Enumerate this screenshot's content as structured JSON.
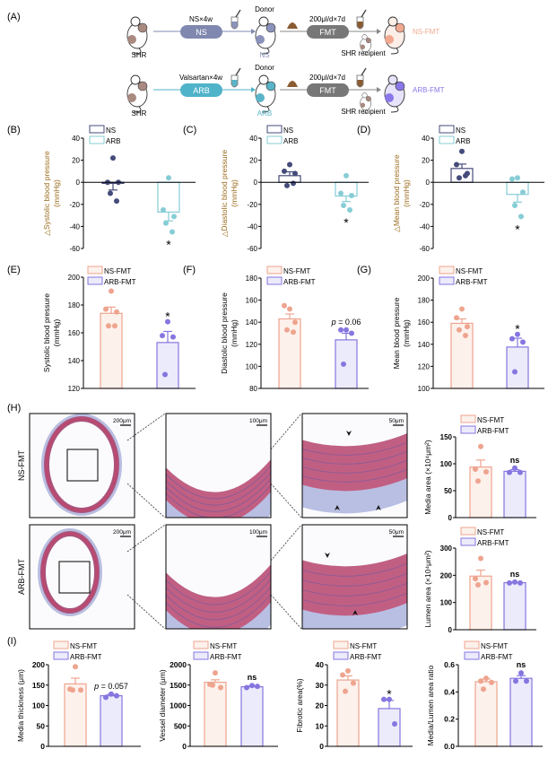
{
  "panel_labels": [
    "(A)",
    "(B)",
    "(C)",
    "(D)",
    "(E)",
    "(F)",
    "(G)",
    "(H)",
    "(I)"
  ],
  "schematic": {
    "rows": [
      {
        "start": "SHR",
        "treatment_label": "NS×4w",
        "treatment_pill": "NS",
        "donor_label": "Donor",
        "donor_group": "NS",
        "dose_label": "200μl/d×7d",
        "fmt_pill": "FMT",
        "recipient_label": "SHR recipient",
        "result_label": "NS-FMT",
        "pill_color": "#8088b0",
        "group_color": "#8a92bc",
        "result_color": "#f0a890"
      },
      {
        "start": "SHR",
        "treatment_label": "Valsartan×4w",
        "treatment_pill": "ARB",
        "donor_label": "Donor",
        "donor_group": "ARB",
        "dose_label": "200μl/d×7d",
        "fmt_pill": "FMT",
        "recipient_label": "SHR recipient",
        "result_label": "ARB-FMT",
        "pill_color": "#4fb3c9",
        "group_color": "#5ab4c8",
        "result_color": "#8a78e8"
      }
    ]
  },
  "histology": {
    "row_labels": [
      "NS-FMT",
      "ARB-FMT"
    ],
    "scale_bars": [
      "200μm",
      "100μm",
      "50μm"
    ]
  },
  "colors": {
    "NS": {
      "stroke": "#454b7a",
      "fill": "#ffffff",
      "point": "#454b7a"
    },
    "ARB": {
      "stroke": "#86cdd6",
      "fill": "#ffffff",
      "point": "#86cdd6"
    },
    "NS-FMT": {
      "stroke": "#eea48e",
      "fill": "#fdf1ec",
      "point": "#eea48e"
    },
    "ARB-FMT": {
      "stroke": "#8576e0",
      "fill": "#ecebfb",
      "point": "#8576e0"
    },
    "ylabel_delta": "#9a6a1a"
  },
  "chart_data": [
    {
      "panel": "(B)",
      "type": "bar",
      "ylabel": [
        "△Systolic blood pressure",
        "(mmHg)"
      ],
      "ylim": [
        -60,
        40
      ],
      "yticks": [
        -60,
        -40,
        -20,
        0,
        20,
        40
      ],
      "legend": [
        "NS",
        "ARB"
      ],
      "groups": [
        {
          "name": "NS",
          "mean": -1,
          "sem": 6,
          "points": [
            22,
            0,
            0,
            -10,
            -17
          ]
        },
        {
          "name": "ARB",
          "mean": -27,
          "sem": 8,
          "points": [
            4,
            -25,
            -31,
            -37,
            -45
          ]
        }
      ],
      "annotation": "*"
    },
    {
      "panel": "(C)",
      "type": "bar",
      "ylabel": [
        "△Diastolic blood pressure",
        "(mmHg)"
      ],
      "ylim": [
        -60,
        40
      ],
      "yticks": [
        -60,
        -40,
        -20,
        0,
        20,
        40
      ],
      "legend": [
        "NS",
        "ARB"
      ],
      "groups": [
        {
          "name": "NS",
          "mean": 6,
          "sem": 3.5,
          "points": [
            16,
            10,
            8,
            -3,
            -1
          ]
        },
        {
          "name": "ARB",
          "mean": -12.5,
          "sem": 5,
          "points": [
            6,
            -10,
            -12,
            -21,
            -25
          ]
        }
      ],
      "annotation": "*"
    },
    {
      "panel": "(D)",
      "type": "bar",
      "ylabel": [
        "△Mean blood pressure",
        "(mmHg)"
      ],
      "ylim": [
        -60,
        40
      ],
      "yticks": [
        -60,
        -40,
        -20,
        0,
        20,
        40
      ],
      "legend": [
        "NS",
        "ARB"
      ],
      "groups": [
        {
          "name": "NS",
          "mean": 12.5,
          "sem": 4,
          "points": [
            28,
            16,
            8,
            4,
            6
          ]
        },
        {
          "name": "ARB",
          "mean": -11,
          "sem": 7,
          "points": [
            4,
            3,
            -9,
            -21,
            -31
          ]
        }
      ],
      "annotation": "*"
    },
    {
      "panel": "(E)",
      "type": "bar",
      "ylabel": [
        "Systolic blood pressure",
        "(mmHg)"
      ],
      "ylim": [
        120,
        200
      ],
      "yticks": [
        120,
        140,
        160,
        180,
        200
      ],
      "legend": [
        "NS-FMT",
        "ARB-FMT"
      ],
      "groups": [
        {
          "name": "NS-FMT",
          "mean": 174,
          "sem": 4.5,
          "points": [
            190,
            177,
            175,
            165,
            165
          ]
        },
        {
          "name": "ARB-FMT",
          "mean": 153,
          "sem": 8,
          "points": [
            168,
            158,
            157,
            130
          ]
        }
      ],
      "annotation": "*"
    },
    {
      "panel": "(F)",
      "type": "bar",
      "ylabel": [
        "Diastolic blood pressure",
        "(mmHg)"
      ],
      "ylim": [
        80,
        180
      ],
      "yticks": [
        80,
        100,
        120,
        140,
        160,
        180
      ],
      "legend": [
        "NS-FMT",
        "ARB-FMT"
      ],
      "groups": [
        {
          "name": "NS-FMT",
          "mean": 143,
          "sem": 4.5,
          "points": [
            152,
            155,
            140,
            133,
            131
          ]
        },
        {
          "name": "ARB-FMT",
          "mean": 124,
          "sem": 6,
          "points": [
            133,
            133,
            130,
            102
          ]
        }
      ],
      "annotation": "p = 0.06"
    },
    {
      "panel": "(G)",
      "type": "bar",
      "ylabel": [
        "Mean blood pressure",
        "(mmHg)"
      ],
      "ylim": [
        100,
        200
      ],
      "yticks": [
        100,
        120,
        140,
        160,
        180,
        200
      ],
      "legend": [
        "NS-FMT",
        "ARB-FMT"
      ],
      "groups": [
        {
          "name": "NS-FMT",
          "mean": 159,
          "sem": 4,
          "points": [
            172,
            164,
            156,
            153,
            148
          ]
        },
        {
          "name": "ARB-FMT",
          "mean": 137.5,
          "sem": 8,
          "points": [
            149,
            145,
            142,
            115
          ]
        }
      ],
      "annotation": "*"
    },
    {
      "panel": "(H)",
      "type": "bar",
      "ylabel": [
        "Media area (×10⁴μm²)"
      ],
      "ylim": [
        0,
        150
      ],
      "yticks": [
        0,
        50,
        100,
        150
      ],
      "legend": [
        "NS-FMT",
        "ARB-FMT"
      ],
      "groups": [
        {
          "name": "NS-FMT",
          "mean": 94,
          "sem": 13,
          "points": [
            132,
            90,
            85,
            68
          ]
        },
        {
          "name": "ARB-FMT",
          "mean": 86,
          "sem": 3,
          "points": [
            92,
            84,
            84
          ]
        }
      ],
      "annotation": "ns"
    },
    {
      "panel": "(H)",
      "type": "bar",
      "ylabel": [
        "Lumen area (×10⁴μm²)"
      ],
      "ylim": [
        0,
        300
      ],
      "yticks": [
        0,
        100,
        200,
        300
      ],
      "legend": [
        "NS-FMT",
        "ARB-FMT"
      ],
      "groups": [
        {
          "name": "NS-FMT",
          "mean": 197,
          "sem": 22,
          "points": [
            262,
            188,
            173,
            165
          ]
        },
        {
          "name": "ARB-FMT",
          "mean": 173,
          "sem": 1.5,
          "points": [
            175,
            172,
            172
          ]
        }
      ],
      "annotation": "ns"
    },
    {
      "panel": "(I)",
      "type": "bar",
      "ylabel": [
        "Media thickness (μm)"
      ],
      "ylim": [
        0,
        200
      ],
      "yticks": [
        0,
        50,
        100,
        150,
        200
      ],
      "legend": [
        "NS-FMT",
        "ARB-FMT"
      ],
      "groups": [
        {
          "name": "NS-FMT",
          "mean": 153,
          "sem": 14,
          "points": [
            195,
            140,
            138,
            138
          ]
        },
        {
          "name": "ARB-FMT",
          "mean": 124,
          "sem": 3,
          "points": [
            128,
            120,
            124
          ]
        }
      ],
      "annotation": "p = 0.057"
    },
    {
      "panel": "(I)",
      "type": "bar",
      "ylabel": [
        "Vessel diameter (μm)"
      ],
      "ylim": [
        0,
        2000
      ],
      "yticks": [
        0,
        500,
        1000,
        1500,
        2000
      ],
      "legend": [
        "NS-FMT",
        "ARB-FMT"
      ],
      "groups": [
        {
          "name": "NS-FMT",
          "mean": 1570,
          "sem": 60,
          "points": [
            1800,
            1520,
            1440,
            1500
          ]
        },
        {
          "name": "ARB-FMT",
          "mean": 1460,
          "sem": 20,
          "points": [
            1490,
            1440,
            1470
          ]
        }
      ],
      "annotation": "ns"
    },
    {
      "panel": "(I)",
      "type": "bar",
      "ylabel": [
        "Fibrotic area(%)"
      ],
      "ylim": [
        0,
        40
      ],
      "yticks": [
        0,
        10,
        20,
        30,
        40
      ],
      "legend": [
        "NS-FMT",
        "ARB-FMT"
      ],
      "groups": [
        {
          "name": "NS-FMT",
          "mean": 32.5,
          "sem": 2,
          "points": [
            37,
            35,
            31,
            27
          ]
        },
        {
          "name": "ARB-FMT",
          "mean": 18.5,
          "sem": 4,
          "points": [
            23,
            23,
            11
          ]
        }
      ],
      "annotation": "*"
    },
    {
      "panel": "(I)",
      "type": "bar",
      "ylabel": [
        "Media/Lumen area ratio"
      ],
      "ylim": [
        0,
        0.6
      ],
      "yticks": [
        0.0,
        0.2,
        0.4,
        0.6
      ],
      "legend": [
        "NS-FMT",
        "ARB-FMT"
      ],
      "groups": [
        {
          "name": "NS-FMT",
          "mean": 0.475,
          "sem": 0.02,
          "points": [
            0.5,
            0.48,
            0.47,
            0.42
          ]
        },
        {
          "name": "ARB-FMT",
          "mean": 0.5,
          "sem": 0.02,
          "points": [
            0.54,
            0.48,
            0.48
          ]
        }
      ],
      "annotation": "ns"
    }
  ]
}
